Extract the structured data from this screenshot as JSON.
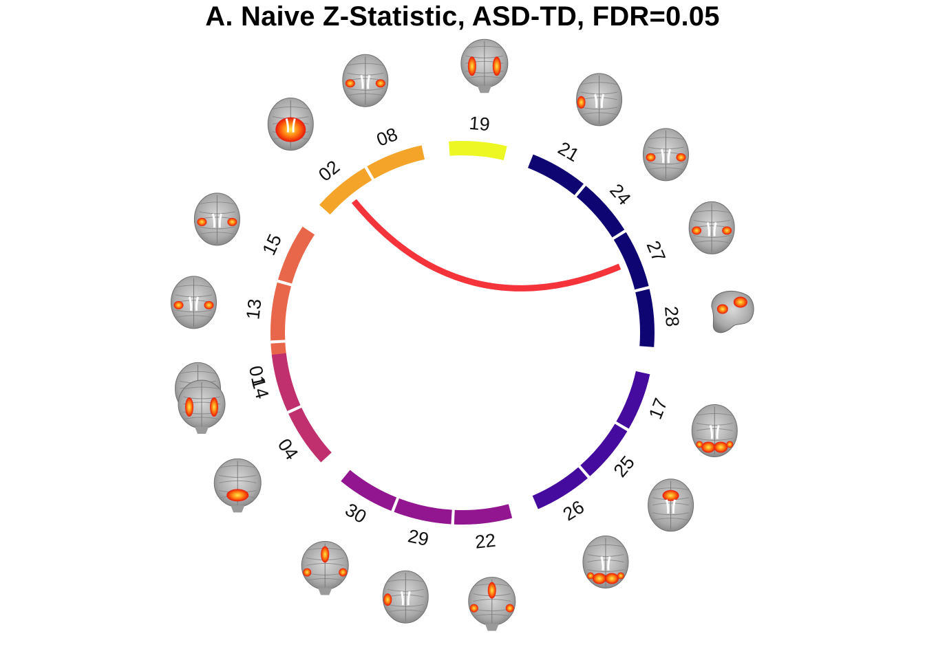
{
  "title": "A. Naive Z-Statistic, ASD-TD, FDR=0.05",
  "groups": [
    {
      "color": "#E8664A",
      "components": [
        "01",
        "13",
        "15"
      ]
    },
    {
      "color": "#F5A42A",
      "components": [
        "02",
        "08"
      ]
    },
    {
      "color": "#EDF724",
      "components": [
        "19"
      ]
    },
    {
      "color": "#0E0572",
      "components": [
        "21",
        "24",
        "27",
        "28"
      ]
    },
    {
      "color": "#450A9E",
      "components": [
        "17",
        "25",
        "26"
      ]
    },
    {
      "color": "#91168F",
      "components": [
        "22",
        "29",
        "30"
      ]
    },
    {
      "color": "#C0306E",
      "components": [
        "04",
        "14"
      ]
    }
  ],
  "components": [
    {
      "id": "01",
      "color": "#E8664A",
      "icon": "brain-axial-cerebellum-icon"
    },
    {
      "id": "13",
      "color": "#E8664A",
      "icon": "brain-axial-bilateral-icon"
    },
    {
      "id": "15",
      "color": "#E8664A",
      "icon": "brain-axial-bilateral-icon"
    },
    {
      "id": "02",
      "color": "#F5A42A",
      "icon": "brain-axial-cerebellum-icon"
    },
    {
      "id": "08",
      "color": "#F5A42A",
      "icon": "brain-axial-bilateral-icon"
    },
    {
      "id": "19",
      "color": "#EDF724",
      "icon": "brain-coronal-bilateral-icon"
    },
    {
      "id": "21",
      "color": "#0E0572",
      "icon": "brain-axial-lateral-icon"
    },
    {
      "id": "24",
      "color": "#0E0572",
      "icon": "brain-axial-bilateral-icon"
    },
    {
      "id": "27",
      "color": "#0E0572",
      "icon": "brain-axial-bilateral-icon"
    },
    {
      "id": "28",
      "color": "#0E0572",
      "icon": "brain-sagittal-icon"
    },
    {
      "id": "17",
      "color": "#450A9E",
      "icon": "brain-axial-posterior-icon"
    },
    {
      "id": "25",
      "color": "#450A9E",
      "icon": "brain-axial-medial-icon"
    },
    {
      "id": "26",
      "color": "#450A9E",
      "icon": "brain-axial-posterior-icon"
    },
    {
      "id": "22",
      "color": "#91168F",
      "icon": "brain-coronal-medial-icon"
    },
    {
      "id": "29",
      "color": "#91168F",
      "icon": "brain-axial-lateral-icon"
    },
    {
      "id": "30",
      "color": "#91168F",
      "icon": "brain-coronal-medial-icon"
    },
    {
      "id": "04",
      "color": "#C0306E",
      "icon": "brain-coronal-cerebellum-icon"
    },
    {
      "id": "14",
      "color": "#C0306E",
      "icon": "brain-coronal-bilateral-icon"
    }
  ],
  "links": [
    {
      "from": "02",
      "to": "27",
      "color": "#F4333B"
    }
  ]
}
